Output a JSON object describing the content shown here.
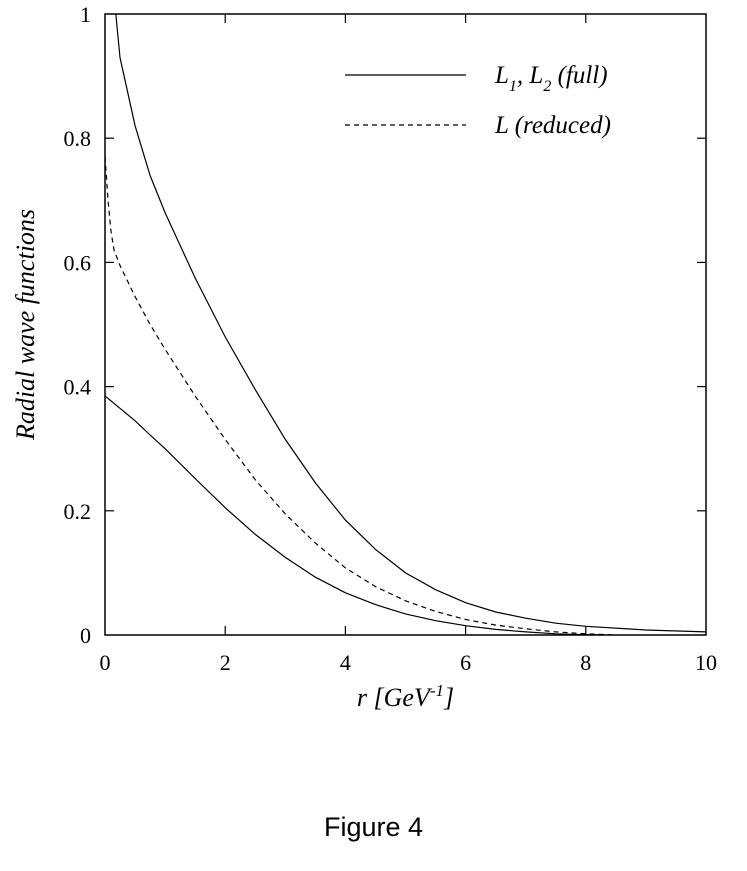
{
  "figure": {
    "caption": "Figure 4"
  },
  "chart_data": {
    "type": "line",
    "xlabel": "r [GeV-1]",
    "xlabel_parts": {
      "main": "r [GeV",
      "sup": "-1",
      "end": "]"
    },
    "ylabel": "Radial wave functions",
    "xlim": [
      0,
      10
    ],
    "ylim": [
      0,
      1
    ],
    "xticks": [
      0,
      2,
      4,
      6,
      8,
      10
    ],
    "yticks": [
      0,
      0.2,
      0.4,
      0.6,
      0.8,
      1
    ],
    "xtick_labels": [
      "0",
      "2",
      "4",
      "6",
      "8",
      "10"
    ],
    "ytick_labels": [
      "0",
      "0.2",
      "0.4",
      "0.6",
      "0.8",
      "1"
    ],
    "grid": false,
    "legend_position": "top-right",
    "legend": [
      {
        "label": "L1, L2 (full)",
        "style": "solid"
      },
      {
        "label": "L (reduced)",
        "style": "dashed"
      }
    ],
    "series": [
      {
        "legend_index": 0,
        "style": "solid",
        "x": [
          0.18,
          0.25,
          0.5,
          0.75,
          1.0,
          1.5,
          2.0,
          2.5,
          3.0,
          3.5,
          4.0,
          4.5,
          5.0,
          5.5,
          6.0,
          6.5,
          7.0,
          7.5,
          8.0,
          9.0,
          10.0
        ],
        "y": [
          1.0,
          0.93,
          0.82,
          0.74,
          0.68,
          0.575,
          0.48,
          0.395,
          0.315,
          0.245,
          0.185,
          0.138,
          0.1,
          0.073,
          0.052,
          0.037,
          0.027,
          0.019,
          0.014,
          0.008,
          0.005
        ]
      },
      {
        "legend_index": 1,
        "style": "dashed",
        "x": [
          0.0,
          0.05,
          0.1,
          0.15,
          0.25,
          0.5,
          0.75,
          1.0,
          1.5,
          2.0,
          2.5,
          3.0,
          3.5,
          4.0,
          4.5,
          5.0,
          5.5,
          6.0,
          6.5,
          7.0,
          7.5,
          8.0,
          8.5
        ],
        "y": [
          0.77,
          0.7,
          0.65,
          0.62,
          0.595,
          0.545,
          0.5,
          0.46,
          0.385,
          0.315,
          0.25,
          0.195,
          0.148,
          0.108,
          0.078,
          0.055,
          0.038,
          0.025,
          0.016,
          0.01,
          0.005,
          0.002,
          0.0
        ]
      },
      {
        "legend_index": 0,
        "style": "solid",
        "x": [
          0.0,
          0.25,
          0.5,
          0.75,
          1.0,
          1.5,
          2.0,
          2.5,
          3.0,
          3.5,
          4.0,
          4.5,
          5.0,
          5.5,
          6.0,
          6.5,
          7.0,
          7.5,
          8.0,
          8.3
        ],
        "y": [
          0.385,
          0.365,
          0.345,
          0.322,
          0.3,
          0.252,
          0.205,
          0.162,
          0.125,
          0.093,
          0.068,
          0.049,
          0.034,
          0.023,
          0.015,
          0.009,
          0.005,
          0.002,
          0.0005,
          0.0
        ]
      }
    ]
  }
}
